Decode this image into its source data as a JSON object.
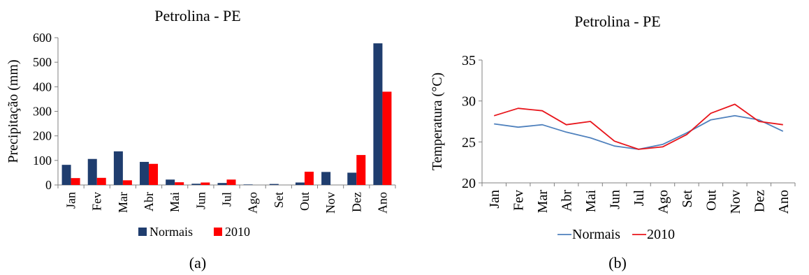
{
  "panel_labels": [
    "(a)",
    "(b)"
  ],
  "chart_data": [
    {
      "type": "bar",
      "title": "Petrolina - PE",
      "xlabel": "",
      "ylabel": "Precipitação (mm)",
      "ylim": [
        0,
        600
      ],
      "yticks": [
        0,
        100,
        200,
        300,
        400,
        500,
        600
      ],
      "categories": [
        "Jan",
        "Fev",
        "Mar",
        "Abr",
        "Mai",
        "Jun",
        "Jul",
        "Ago",
        "Set",
        "Out",
        "Nov",
        "Dez",
        "Ano"
      ],
      "series": [
        {
          "name": "Normais",
          "color": "#1f3d6e",
          "values": [
            82,
            106,
            137,
            94,
            22,
            5,
            8,
            2,
            4,
            10,
            53,
            50,
            577
          ]
        },
        {
          "name": "2010",
          "color": "#ff0000",
          "values": [
            28,
            29,
            19,
            86,
            11,
            10,
            22,
            0,
            0,
            54,
            0,
            122,
            380
          ]
        }
      ],
      "legend": "bottom",
      "grid": false
    },
    {
      "type": "line",
      "title": "Petrolina - PE",
      "xlabel": "",
      "ylabel": "Temperatura (°C)",
      "ylim": [
        20,
        35
      ],
      "yticks": [
        20,
        25,
        30,
        35
      ],
      "categories": [
        "Jan",
        "Fev",
        "Mar",
        "Abr",
        "Mai",
        "Jun",
        "Jul",
        "Ago",
        "Set",
        "Out",
        "Nov",
        "Dez",
        "Ano"
      ],
      "series": [
        {
          "name": "Normais",
          "color": "#4f81bd",
          "values": [
            27.2,
            26.8,
            27.1,
            26.2,
            25.5,
            24.5,
            24.1,
            24.7,
            26.1,
            27.7,
            28.2,
            27.7,
            26.3
          ]
        },
        {
          "name": "2010",
          "color": "#e8151b",
          "values": [
            28.2,
            29.1,
            28.8,
            27.1,
            27.5,
            25.1,
            24.1,
            24.4,
            25.9,
            28.5,
            29.6,
            27.5,
            27.1
          ]
        }
      ],
      "legend": "bottom",
      "grid": false
    }
  ]
}
